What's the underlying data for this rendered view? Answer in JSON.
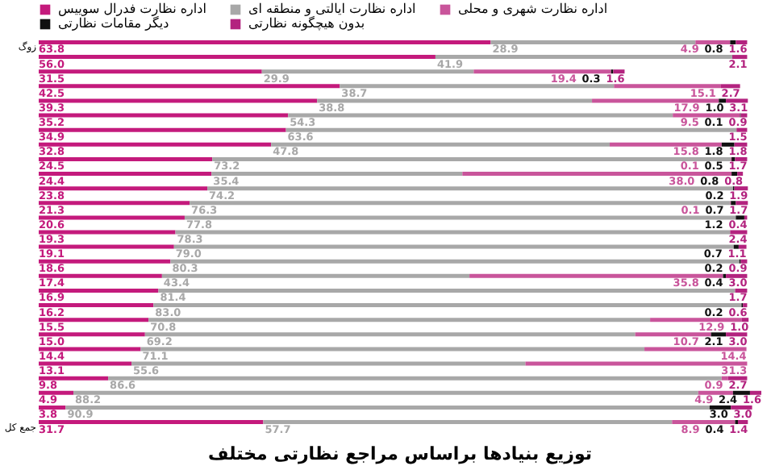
{
  "chart_data": {
    "type": "bar",
    "orientation": "horizontal",
    "stacked": true,
    "legend": "top",
    "title": "توزیع بنیادها براساس مراجع نظارتی مختلف",
    "categories": [
      "زوگ",
      null,
      null,
      null,
      null,
      null,
      null,
      null,
      null,
      null,
      null,
      null,
      null,
      null,
      null,
      null,
      null,
      null,
      null,
      null,
      null,
      null,
      null,
      null,
      null,
      null,
      "جمع کل"
    ],
    "series": [
      {
        "name": "اداره نظارت فدرال سوییس",
        "color": "#c41a7c",
        "values": [
          63.8,
          56.0,
          31.5,
          42.5,
          39.3,
          35.2,
          34.9,
          32.8,
          24.5,
          24.4,
          23.8,
          21.3,
          20.6,
          19.3,
          19.1,
          18.6,
          17.4,
          16.9,
          16.2,
          15.5,
          15.0,
          14.4,
          13.1,
          9.8,
          4.9,
          3.8,
          31.7
        ],
        "value_labels": [
          "63.8",
          "56.0",
          "31.5",
          "42.5",
          "39.3",
          "35.2",
          "34.9",
          "32.8",
          "24.5",
          "24.4",
          "23.8",
          "21.3",
          "20.6",
          "19.3",
          "19.1",
          "18.6",
          "17.4",
          "16.9",
          "16.2",
          "15.5",
          "15.0",
          "14.4",
          "13.1",
          "9.8",
          "4.9",
          "3.8",
          "31.7"
        ]
      },
      {
        "name": "اداره نظارت ایالتی و منطقه ای",
        "color": "#a8a8a8",
        "values": [
          28.9,
          41.9,
          29.9,
          38.7,
          38.8,
          54.3,
          63.6,
          47.8,
          73.2,
          35.4,
          74.2,
          76.3,
          77.8,
          78.3,
          79.0,
          80.3,
          43.4,
          81.4,
          83.0,
          70.8,
          69.2,
          71.1,
          55.6,
          86.6,
          88.2,
          90.9,
          57.7
        ],
        "value_labels": [
          "28.9",
          "41.9",
          "29.9",
          "38.7",
          "38.8",
          "54.3",
          "63.6",
          "47.8",
          "73.2",
          "35.4",
          "74.2",
          "76.3",
          "77.8",
          "78.3",
          "79.0",
          "80.3",
          "43.4",
          "81.4",
          "83.0",
          "70.8",
          "69.2",
          "71.1",
          "55.6",
          "86.6",
          "88.2",
          "90.9",
          "57.7"
        ]
      },
      {
        "name": "اداره نظارت شهری و محلی",
        "color": "#c9559b",
        "values": [
          4.9,
          null,
          19.4,
          15.1,
          17.9,
          9.5,
          null,
          15.8,
          0.1,
          38.0,
          null,
          0.1,
          null,
          null,
          null,
          null,
          35.8,
          null,
          null,
          12.9,
          10.7,
          14.4,
          31.3,
          0.9,
          4.9,
          null,
          8.9
        ],
        "value_labels": [
          "4.9",
          null,
          "19.4",
          "15.1",
          "17.9",
          "9.5",
          null,
          "15.8",
          "0.1",
          "38.0",
          null,
          "0.1",
          null,
          null,
          null,
          null,
          "35.8",
          null,
          null,
          "12.9",
          "10.7",
          "14.4",
          "31.3",
          "0.9",
          "4.9",
          null,
          "8.9"
        ]
      },
      {
        "name": "دیگر مقامات نظارتی",
        "color": "#111111",
        "values": [
          0.8,
          null,
          0.3,
          null,
          1.0,
          0.1,
          null,
          1.8,
          0.5,
          0.8,
          0.2,
          0.7,
          1.2,
          null,
          0.7,
          0.2,
          0.4,
          null,
          0.2,
          null,
          2.1,
          null,
          null,
          null,
          2.4,
          3.0,
          0.4
        ],
        "value_labels": [
          "0.8",
          null,
          "0.3",
          null,
          "1.0",
          "0.1",
          null,
          "1.8",
          "0.5",
          "0.8",
          "0.2",
          "0.7",
          "1.2",
          null,
          "0.7",
          "0.2",
          "0.4",
          null,
          "0.2",
          null,
          "2.1",
          null,
          null,
          null,
          "2.4",
          "3.0",
          "0.4"
        ]
      },
      {
        "name": "بدون هیچگونه نظارتی",
        "color": "#b3237f",
        "values": [
          1.6,
          2.1,
          1.6,
          2.7,
          3.1,
          0.9,
          1.5,
          1.8,
          1.7,
          0.8,
          1.9,
          1.7,
          0.4,
          2.4,
          1.1,
          0.9,
          3.0,
          1.7,
          0.6,
          1.0,
          3.0,
          null,
          null,
          2.7,
          1.6,
          3.0,
          1.4
        ],
        "value_labels": [
          "1.6",
          "2.1",
          "1.6",
          "2.7",
          "3.1",
          "0.9",
          "1.5",
          "1.8",
          "1.7",
          "0.8",
          "1.9",
          "1.7",
          "0.4",
          "2.4",
          "1.1",
          "0.9",
          "3.0",
          "1.7",
          "0.6",
          "1.0",
          "3.0",
          null,
          null,
          "2.7",
          "1.6",
          "3.0",
          "1.4"
        ]
      }
    ]
  }
}
